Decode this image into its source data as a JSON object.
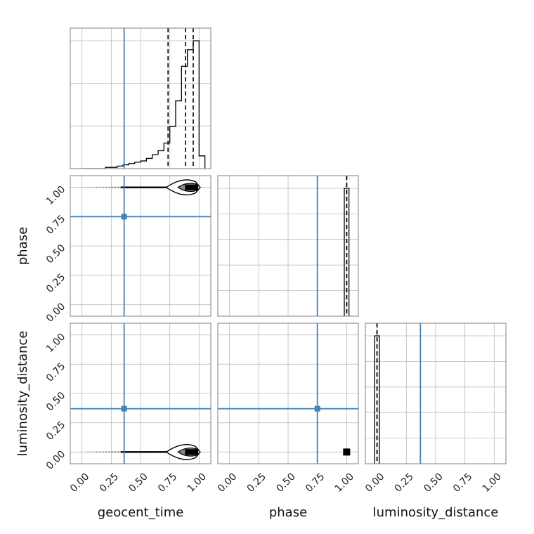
{
  "chart_data": {
    "type": "corner",
    "parameters": [
      "geocent_time",
      "phase",
      "luminosity_distance"
    ],
    "axis_range": [
      -0.1,
      1.1
    ],
    "ticks": [
      0.0,
      0.25,
      0.5,
      0.75,
      1.0
    ],
    "tick_labels": [
      "0.00",
      "0.25",
      "0.50",
      "0.75",
      "1.00"
    ],
    "grid": true,
    "truths": {
      "geocent_time": 0.36,
      "phase": 0.75,
      "luminosity_distance": 0.37
    },
    "colors": {
      "truth": "#4682b4",
      "hist": "#000000",
      "frame": "#808080",
      "grid": "#bbbbbb"
    },
    "histograms": [
      {
        "parameter": "geocent_time",
        "bin_edges": [
          0.0,
          0.05,
          0.1,
          0.15,
          0.2,
          0.25,
          0.3,
          0.35,
          0.4,
          0.45,
          0.5,
          0.55,
          0.6,
          0.65,
          0.7,
          0.75,
          0.8,
          0.85,
          0.9,
          0.95,
          1.0,
          1.05
        ],
        "counts": [
          0,
          0,
          0,
          0,
          0.01,
          0.01,
          0.02,
          0.03,
          0.04,
          0.05,
          0.06,
          0.08,
          0.11,
          0.14,
          0.2,
          0.33,
          0.53,
          0.8,
          0.93,
          1.0,
          0.1
        ],
        "quantiles": [
          0.735,
          0.885,
          0.95
        ]
      },
      {
        "parameter": "phase",
        "bin_edges": [
          0.98,
          1.0,
          1.02
        ],
        "counts": [
          1.0,
          1.0
        ],
        "quantiles": [
          1.0,
          1.0,
          1.0
        ]
      },
      {
        "parameter": "luminosity_distance",
        "bin_edges": [
          -0.02,
          0.0,
          0.02
        ],
        "counts": [
          1.0,
          1.0
        ],
        "quantiles": [
          0.0,
          0.0,
          0.0
        ]
      }
    ]
  }
}
